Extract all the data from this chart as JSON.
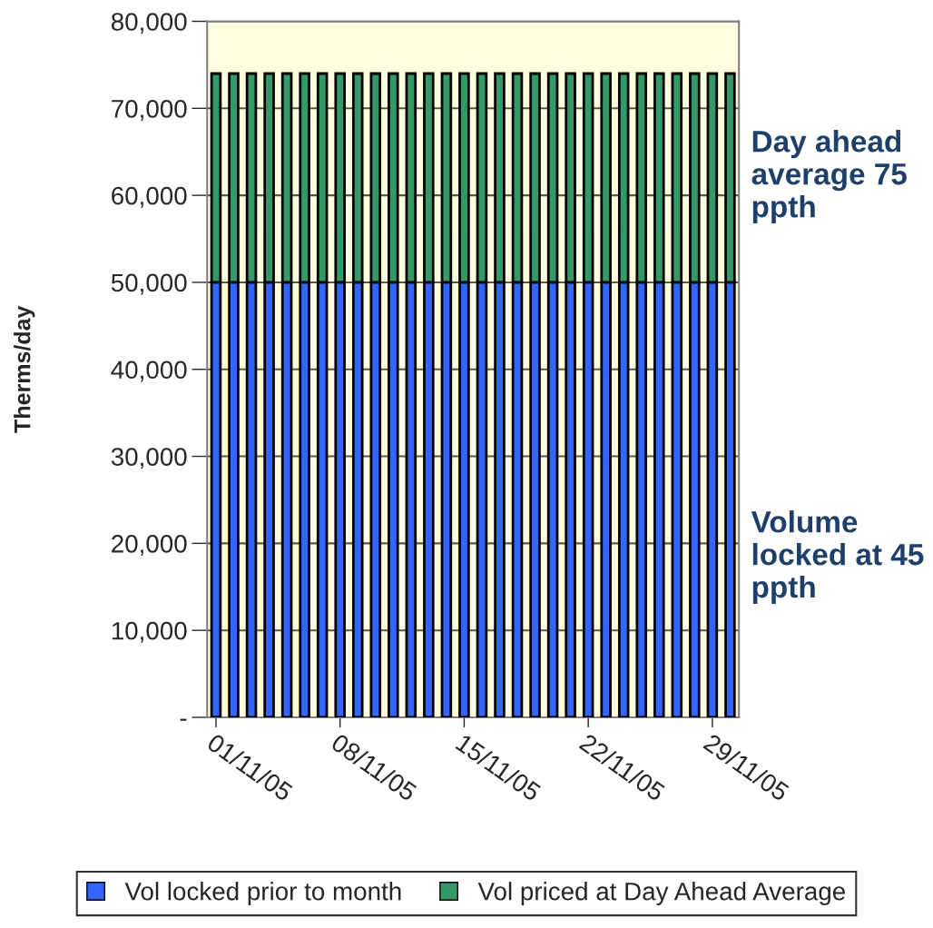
{
  "chart_data": {
    "type": "bar",
    "stacked": true,
    "ylabel": "Therms/day",
    "categories": [
      "01/11/05",
      null,
      null,
      null,
      null,
      null,
      null,
      "08/11/05",
      null,
      null,
      null,
      null,
      null,
      null,
      "15/11/05",
      null,
      null,
      null,
      null,
      null,
      null,
      "22/11/05",
      null,
      null,
      null,
      null,
      null,
      null,
      "29/11/05",
      null
    ],
    "series": [
      {
        "name": "Vol locked prior to month",
        "color": "#3366ff",
        "values": [
          50000,
          50000,
          50000,
          50000,
          50000,
          50000,
          50000,
          50000,
          50000,
          50000,
          50000,
          50000,
          50000,
          50000,
          50000,
          50000,
          50000,
          50000,
          50000,
          50000,
          50000,
          50000,
          50000,
          50000,
          50000,
          50000,
          50000,
          50000,
          50000,
          50000
        ]
      },
      {
        "name": "Vol priced at Day Ahead Average",
        "color": "#339966",
        "values": [
          24000,
          24000,
          24000,
          24000,
          24000,
          24000,
          24000,
          24000,
          24000,
          24000,
          24000,
          24000,
          24000,
          24000,
          24000,
          24000,
          24000,
          24000,
          24000,
          24000,
          24000,
          24000,
          24000,
          24000,
          24000,
          24000,
          24000,
          24000,
          24000,
          24000
        ]
      }
    ],
    "ylim": [
      0,
      80000
    ],
    "yticks": [
      {
        "value": 0,
        "label": "-"
      },
      {
        "value": 10000,
        "label": "10,000"
      },
      {
        "value": 20000,
        "label": "20,000"
      },
      {
        "value": 30000,
        "label": "30,000"
      },
      {
        "value": 40000,
        "label": "40,000"
      },
      {
        "value": 50000,
        "label": "50,000"
      },
      {
        "value": 60000,
        "label": "60,000"
      },
      {
        "value": 70000,
        "label": "70,000"
      },
      {
        "value": 80000,
        "label": "80,000"
      }
    ],
    "grid": "y",
    "legend": "bottom",
    "annotations": [
      "Day ahead average 75 ppth",
      "Volume locked at 45 ppth"
    ]
  }
}
